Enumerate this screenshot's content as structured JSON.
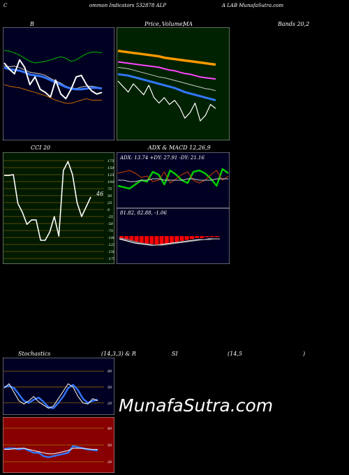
{
  "header": {
    "p1": "C",
    "p2": "ommon  Indicators 532878  ALP",
    "p3": "A LAB MunafaSutra.com"
  },
  "panel_titles": {
    "bollinger": "B",
    "price": "Price,",
    "price_overlap": "Volume,",
    "ma": "MA",
    "bands": "Bands 20,2",
    "cci": "CCI 20",
    "adx_macd": "ADX  & MACD 12,26,9",
    "stoch_1": "Stochastics",
    "stoch_2": "(14,3,3) & R",
    "stoch_3": "SI",
    "stoch_4": "(14,5",
    "stoch_5": ")"
  },
  "watermark": "MunafaSutra.com",
  "chart_data": [
    {
      "id": "bollinger",
      "type": "line",
      "series": [
        {
          "values": [
            72,
            73,
            75,
            78,
            82,
            86,
            88,
            87,
            86,
            84,
            82,
            80,
            82,
            86,
            84,
            80,
            76,
            74,
            74,
            75
          ],
          "color": "#00bb00"
        },
        {
          "values": [
            92,
            93,
            92,
            94,
            97,
            100,
            101,
            102,
            104,
            108,
            111,
            114,
            118,
            120,
            121,
            119,
            118,
            118,
            119,
            120
          ],
          "color": "#cccccc"
        },
        {
          "values": [
            94,
            96,
            97,
            98,
            100,
            103,
            104,
            105,
            107,
            110,
            113,
            116,
            119,
            121,
            122,
            122,
            121,
            120,
            120,
            121
          ],
          "color": "#3377ff"
        },
        {
          "values": [
            88,
            96,
            102,
            84,
            94,
            116,
            106,
            122,
            126,
            132,
            110,
            128,
            134,
            122,
            106,
            104,
            116,
            124,
            128,
            126
          ],
          "color": "#ffffff"
        },
        {
          "values": [
            116,
            118,
            119,
            120,
            122,
            124,
            126,
            128,
            130,
            133,
            136,
            138,
            140,
            140,
            138,
            136,
            134,
            136,
            136,
            136
          ],
          "color": "#cc6600"
        }
      ]
    },
    {
      "id": "price",
      "type": "line",
      "series": [
        {
          "values": [
            52,
            53,
            54,
            55,
            56,
            57,
            58,
            59,
            60,
            62,
            63,
            64,
            65,
            66,
            67,
            68,
            69,
            70,
            71,
            72
          ],
          "color": "#ff9900"
        },
        {
          "values": [
            68,
            69,
            70,
            71,
            72,
            73,
            74,
            75,
            76,
            78,
            80,
            81,
            83,
            85,
            86,
            88,
            90,
            91,
            92,
            93
          ],
          "color": "#ff44ff"
        },
        {
          "values": [
            76,
            77,
            78,
            80,
            82,
            84,
            86,
            88,
            90,
            91,
            93,
            95,
            97,
            99,
            101,
            103,
            105,
            107,
            108,
            110
          ],
          "color": "#cccccc"
        },
        {
          "values": [
            86,
            87,
            88,
            90,
            92,
            94,
            96,
            98,
            100,
            102,
            104,
            106,
            109,
            112,
            114,
            116,
            118,
            120,
            122,
            124
          ],
          "color": "#3377ff"
        },
        {
          "values": [
            96,
            104,
            112,
            100,
            108,
            116,
            102,
            120,
            128,
            120,
            130,
            124,
            134,
            150,
            142,
            128,
            154,
            146,
            130,
            136
          ],
          "color": "#ffffff"
        }
      ]
    },
    {
      "id": "cci",
      "type": "line",
      "ticks": [
        175,
        150,
        125,
        100,
        75,
        50,
        25,
        0,
        -25,
        -50,
        -75,
        -100,
        -125,
        -150,
        -175
      ],
      "last_value": 46,
      "values": [
        122,
        122,
        125,
        22,
        -10,
        -53,
        -37,
        -37,
        -110,
        -110,
        -80,
        -25,
        -95,
        140,
        172,
        125,
        25,
        -25,
        10,
        45
      ]
    },
    {
      "id": "adx",
      "type": "line",
      "label": "ADX: 13.74  +DY: 27.91 -DY: 21.16",
      "series": [
        {
          "values": [
            48,
            50,
            52,
            46,
            40,
            42,
            28,
            32,
            46,
            26,
            32,
            40,
            44,
            28,
            26,
            30,
            38,
            48,
            24,
            30
          ],
          "color": "#00cc00"
        },
        {
          "values": [
            30,
            28,
            26,
            30,
            36,
            34,
            42,
            40,
            28,
            44,
            38,
            32,
            28,
            40,
            44,
            40,
            32,
            26,
            40,
            34
          ],
          "color": "#cc4400"
        },
        {
          "values": [
            40,
            40,
            42,
            42,
            40,
            40,
            38,
            38,
            40,
            40,
            40,
            40,
            38,
            38,
            40,
            40,
            40,
            38,
            38,
            38
          ],
          "color": "#cccccc"
        }
      ]
    },
    {
      "id": "macd",
      "type": "bar",
      "label": "81.82,  82.88,  -1.06",
      "values": [
        3,
        4,
        5,
        6,
        7,
        8,
        8,
        9,
        9,
        8,
        7,
        6,
        5,
        4,
        3,
        2,
        2,
        1,
        1,
        1
      ]
    },
    {
      "id": "stochastics",
      "type": "line",
      "ticks": [
        80,
        50,
        20
      ],
      "series": [
        {
          "values": [
            50,
            52,
            48,
            36,
            24,
            20,
            26,
            30,
            22,
            12,
            10,
            20,
            32,
            48,
            54,
            44,
            28,
            20,
            24,
            26
          ],
          "color": "#3377ff"
        },
        {
          "values": [
            48,
            56,
            40,
            24,
            18,
            24,
            32,
            22,
            16,
            10,
            14,
            28,
            42,
            56,
            50,
            32,
            20,
            18,
            28,
            24
          ],
          "color": "#ffffff"
        }
      ]
    },
    {
      "id": "rsi",
      "type": "line",
      "ticks": [
        80,
        50,
        20
      ],
      "series": [
        {
          "values": [
            43,
            44,
            44,
            42,
            44,
            40,
            36,
            36,
            30,
            28,
            30,
            32,
            34,
            36,
            48,
            46,
            44,
            42,
            41,
            40
          ],
          "color": "#3377ff"
        },
        {
          "values": [
            42,
            42,
            43,
            44,
            44,
            42,
            40,
            38,
            36,
            34,
            34,
            36,
            38,
            40,
            44,
            44,
            44,
            43,
            42,
            42
          ],
          "color": "#ffffff"
        }
      ]
    }
  ]
}
